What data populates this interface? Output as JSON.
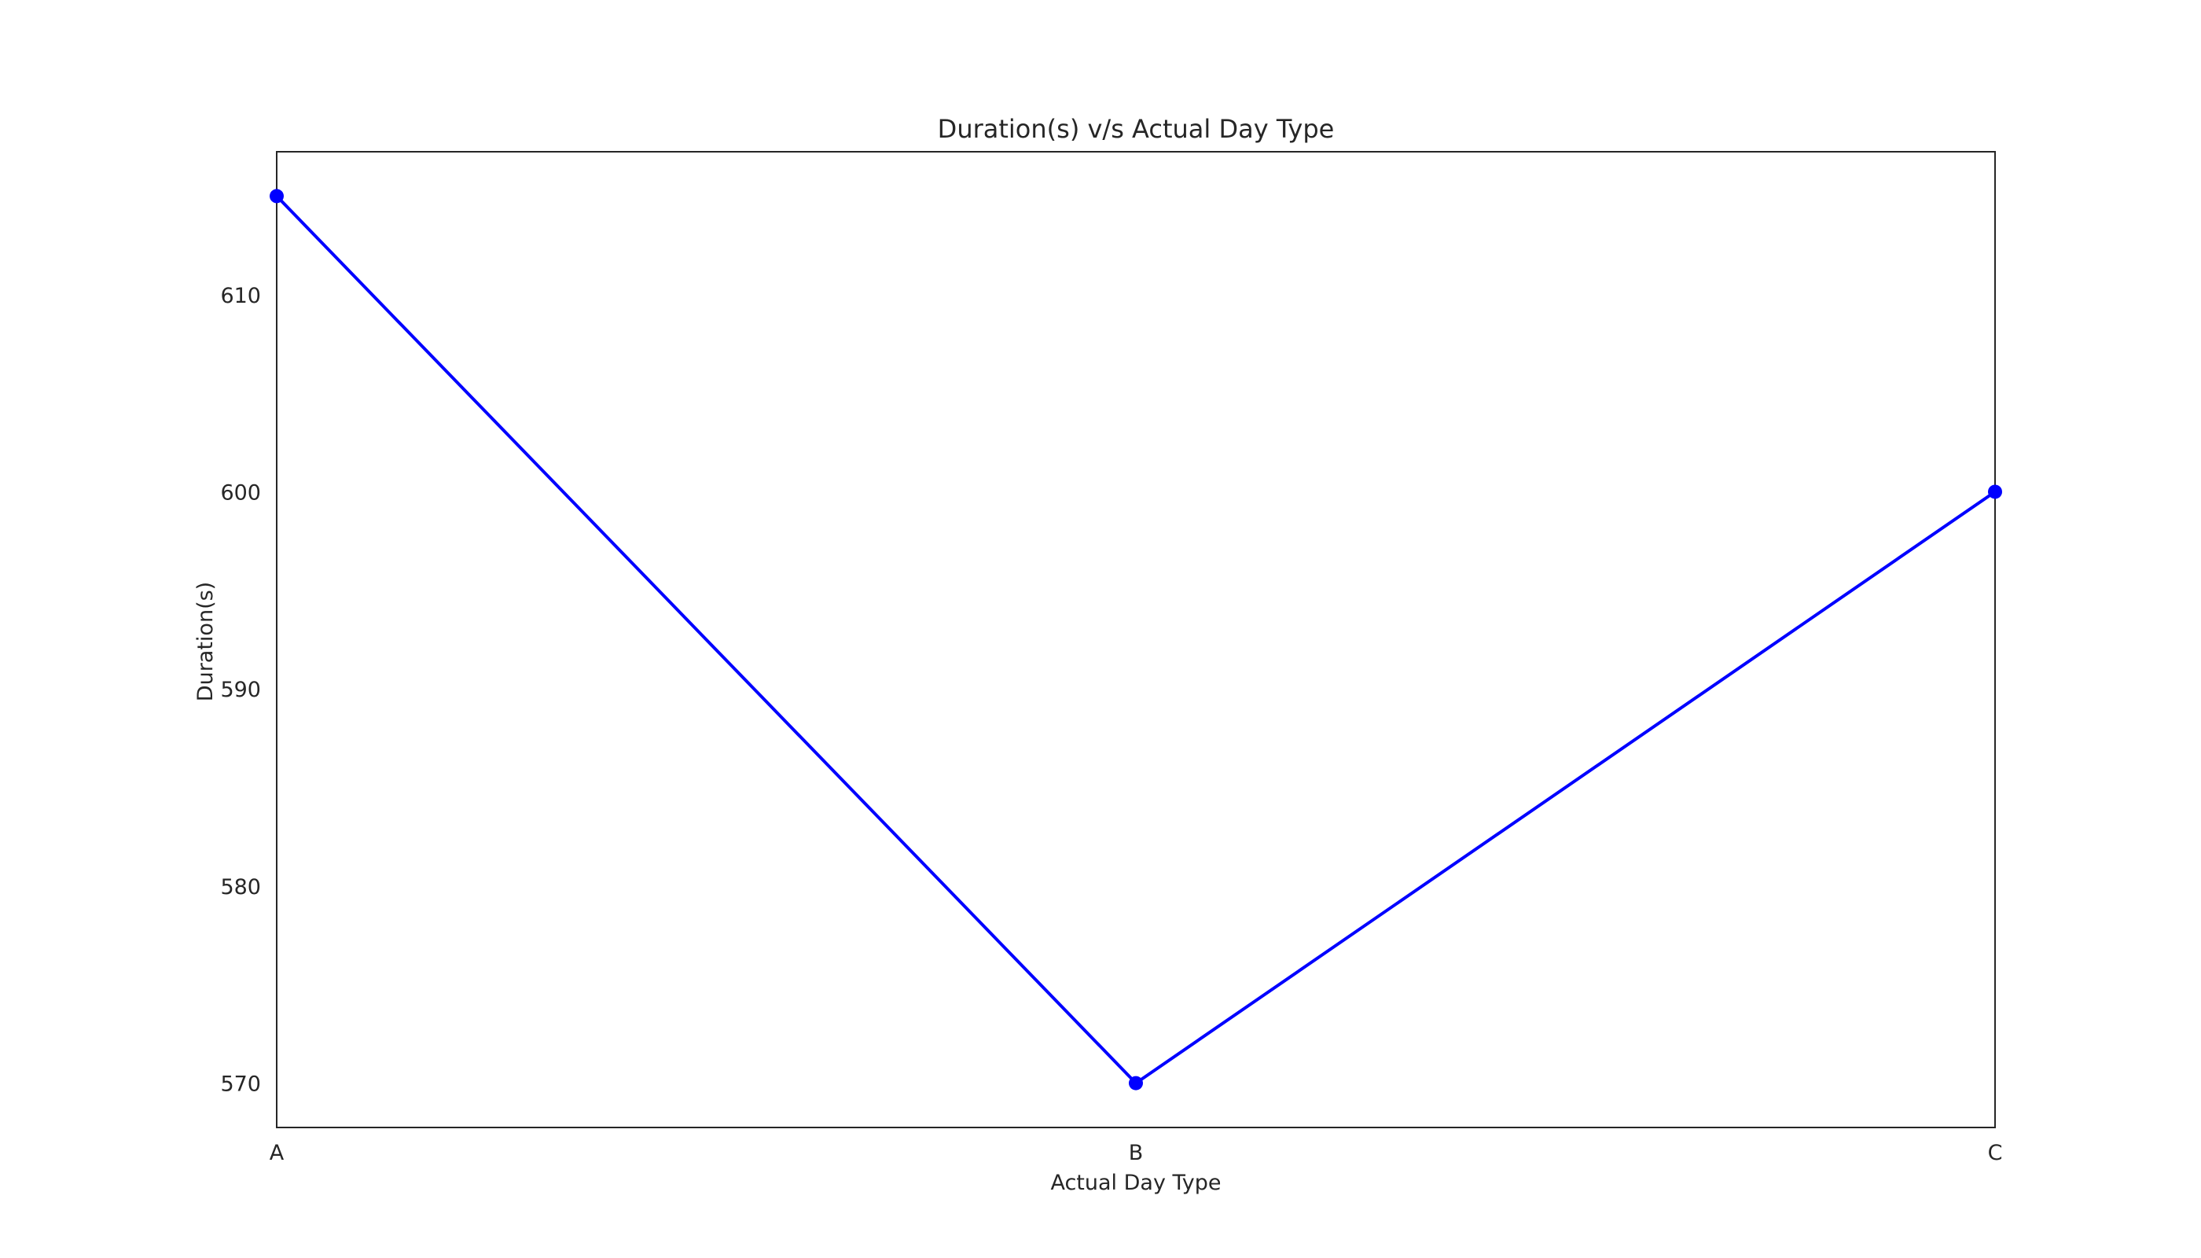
{
  "chart_data": {
    "type": "line",
    "title": "Duration(s) v/s Actual Day Type",
    "xlabel": "Actual Day Type",
    "ylabel": "Duration(s)",
    "categories": [
      "A",
      "B",
      "C"
    ],
    "series": [
      {
        "values": [
          615,
          570,
          600
        ],
        "color": "#0000ff",
        "marker": "circle"
      }
    ],
    "ylim": [
      567.75,
      617.25
    ],
    "yticks": [
      570,
      580,
      590,
      600,
      610
    ],
    "ytick_labels": [
      "570",
      "580",
      "590",
      "600",
      "610"
    ],
    "grid": false,
    "legend": "none"
  }
}
